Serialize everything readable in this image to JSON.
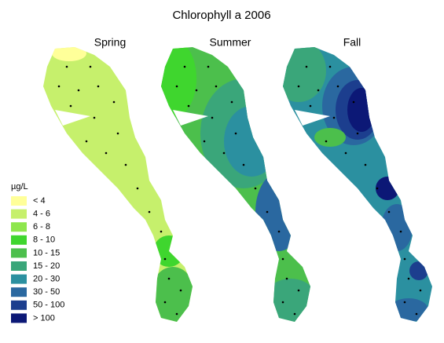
{
  "title": "Chlorophyll a 2006",
  "panels": [
    "Spring",
    "Summer",
    "Fall"
  ],
  "legend": {
    "title": "µg/L",
    "items": [
      {
        "label": "< 4",
        "color": "#ffff99"
      },
      {
        "label": "4 - 6",
        "color": "#c6f06c"
      },
      {
        "label": "6 - 8",
        "color": "#8ee64d"
      },
      {
        "label": "8 - 10",
        "color": "#3fd62e"
      },
      {
        "label": "10 - 15",
        "color": "#4cbf4c"
      },
      {
        "label": "15 - 20",
        "color": "#3aa67a"
      },
      {
        "label": "20 - 30",
        "color": "#2b90a0"
      },
      {
        "label": "30 - 50",
        "color": "#2a68a0"
      },
      {
        "label": "50 - 100",
        "color": "#1c3e8e"
      },
      {
        "label": "> 100",
        "color": "#0c1876"
      }
    ]
  }
}
